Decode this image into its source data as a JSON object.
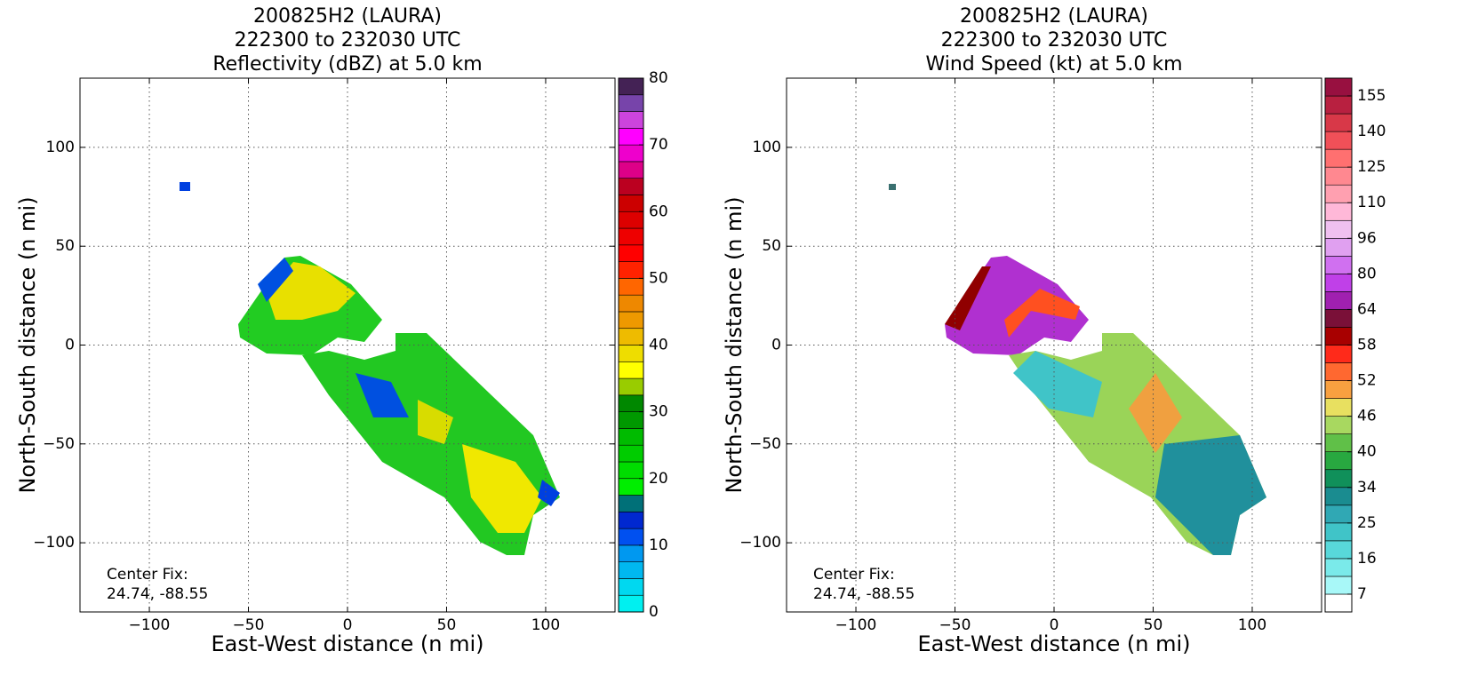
{
  "chart_data": [
    {
      "type": "heatmap",
      "title": [
        "200825H2 (LAURA)",
        "222300 to 232030 UTC",
        "Reflectivity (dBZ) at 5.0 km"
      ],
      "x_label": "East-West distance (n mi)",
      "y_label": "North-South distance (n mi)",
      "annotation": [
        "Center Fix:",
        "24.74, -88.55"
      ],
      "xlim": [
        -135,
        135
      ],
      "ylim": [
        -135,
        135
      ],
      "xticks": [
        {
          "value": -100,
          "label": "−100"
        },
        {
          "value": -50,
          "label": "−50"
        },
        0,
        50,
        100
      ],
      "yticks": [
        {
          "value": -100,
          "label": "−100"
        },
        {
          "value": -50,
          "label": "−50"
        },
        0,
        50,
        100
      ],
      "grid": true,
      "cbar_bounds": [
        0,
        2.5,
        5,
        7.5,
        10,
        12.5,
        15,
        17.5,
        20,
        22.5,
        25,
        27.5,
        30,
        32.5,
        35,
        37.5,
        40,
        42.5,
        45,
        47.5,
        50,
        52.5,
        55,
        57.5,
        60,
        62.5,
        65,
        67.5,
        70,
        72.5,
        75,
        77.5,
        80
      ],
      "cbar_colors": [
        "#00f0f0",
        "#00d8f0",
        "#00b8f0",
        "#0098f0",
        "#0050f0",
        "#0028d0",
        "#007078",
        "#00ee00",
        "#00dd00",
        "#00cc00",
        "#00bb00",
        "#009900",
        "#008800",
        "#99cc00",
        "#ffff00",
        "#eedd00",
        "#eebb00",
        "#ee9900",
        "#ee8800",
        "#ff6600",
        "#ff2200",
        "#ff0000",
        "#ee0000",
        "#dd0000",
        "#cc0000",
        "#bb0020",
        "#dd0088",
        "#ee00cc",
        "#ff00ff",
        "#cc44dd",
        "#7744aa",
        "#442255"
      ],
      "cbar_ticks": [
        0,
        10,
        20,
        30,
        40,
        50,
        60,
        70,
        80
      ]
    },
    {
      "type": "heatmap",
      "title": [
        "200825H2 (LAURA)",
        "222300 to 232030 UTC",
        "Wind Speed (kt) at 5.0 km"
      ],
      "x_label": "East-West distance (n mi)",
      "y_label": "North-South distance (n mi)",
      "annotation": [
        "Center Fix:",
        "24.74, -88.55"
      ],
      "xlim": [
        -135,
        135
      ],
      "ylim": [
        -135,
        135
      ],
      "xticks": [
        {
          "value": -100,
          "label": "−100"
        },
        {
          "value": -50,
          "label": "−50"
        },
        0,
        50,
        100
      ],
      "yticks": [
        {
          "value": -100,
          "label": "−100"
        },
        {
          "value": -50,
          "label": "−50"
        },
        0,
        50,
        100
      ],
      "grid": true,
      "cbar_bounds": [
        3,
        7,
        11.5,
        16,
        20.5,
        25,
        29.5,
        34,
        37,
        40,
        43,
        46,
        49,
        52,
        55,
        58,
        61,
        64,
        72,
        80,
        88,
        96,
        103,
        110,
        117.5,
        125,
        132.5,
        140,
        147.5,
        155,
        158
      ],
      "cbar_colors": [
        "#ffffff",
        "#a8f8f8",
        "#7aeaea",
        "#58d8da",
        "#40c4c8",
        "#30a8b4",
        "#1a8c90",
        "#10905a",
        "#28a840",
        "#60c048",
        "#a8d860",
        "#e8e060",
        "#f8a040",
        "#ff6830",
        "#ff2a1a",
        "#a80000",
        "#7a1038",
        "#a020b0",
        "#c040e8",
        "#d070f0",
        "#e0a0f0",
        "#f0c0f0",
        "#ffb8d8",
        "#ffa0b0",
        "#ff8890",
        "#ff7070",
        "#f05058",
        "#d83848",
        "#b82040",
        "#981040"
      ],
      "cbar_ticks": [
        7,
        16,
        25,
        34,
        40,
        46,
        52,
        58,
        64,
        80,
        96,
        110,
        125,
        140,
        155
      ]
    }
  ]
}
